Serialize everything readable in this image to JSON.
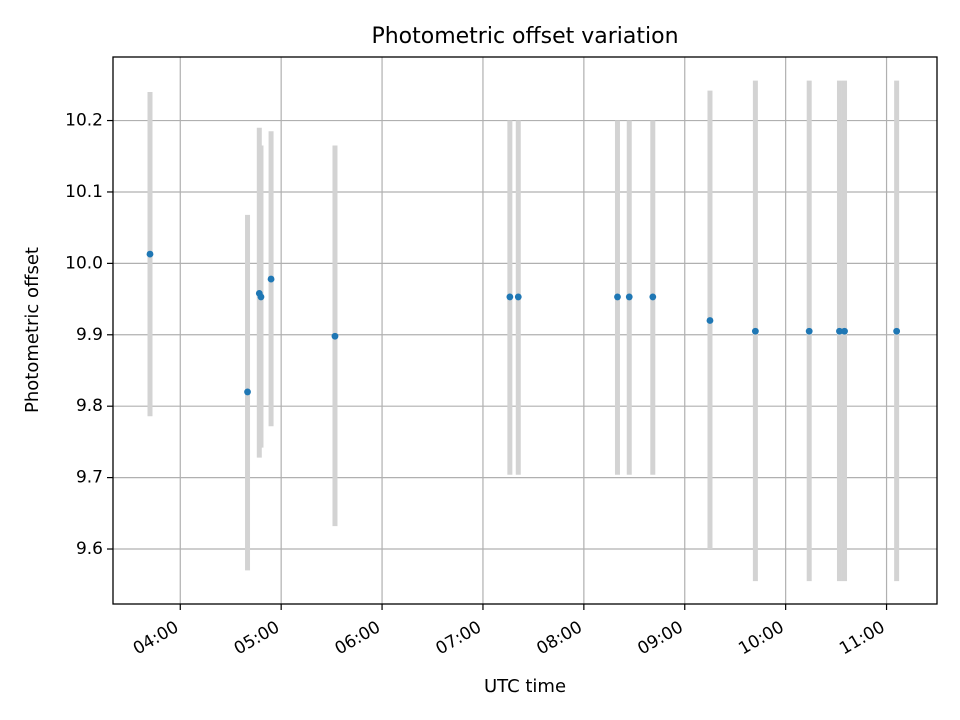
{
  "chart_data": {
    "type": "scatter",
    "title": "Photometric offset variation",
    "xlabel": "UTC time",
    "ylabel": "Photometric offset",
    "xlim": [
      "03:20",
      "11:30"
    ],
    "ylim": [
      9.523,
      10.289
    ],
    "x_ticks": [
      "04:00",
      "05:00",
      "06:00",
      "07:00",
      "08:00",
      "09:00",
      "10:00",
      "11:00"
    ],
    "y_ticks": [
      9.6,
      9.7,
      9.8,
      9.9,
      10.0,
      10.1,
      10.2
    ],
    "grid": true,
    "legend": false,
    "errorbar_color": "#d3d3d3",
    "marker_color": "#1f77b4",
    "points": [
      {
        "time": "03:42",
        "value": 10.013,
        "err_low": 9.786,
        "err_high": 10.24
      },
      {
        "time": "04:40",
        "value": 9.82,
        "err_low": 9.57,
        "err_high": 10.068
      },
      {
        "time": "04:47",
        "value": 9.958,
        "err_low": 9.728,
        "err_high": 10.19
      },
      {
        "time": "04:48",
        "value": 9.953,
        "err_low": 9.742,
        "err_high": 10.165
      },
      {
        "time": "04:54",
        "value": 9.978,
        "err_low": 9.772,
        "err_high": 10.185
      },
      {
        "time": "05:32",
        "value": 9.898,
        "err_low": 9.632,
        "err_high": 10.165
      },
      {
        "time": "07:16",
        "value": 9.953,
        "err_low": 9.704,
        "err_high": 10.2
      },
      {
        "time": "07:21",
        "value": 9.953,
        "err_low": 9.704,
        "err_high": 10.2
      },
      {
        "time": "08:20",
        "value": 9.953,
        "err_low": 9.704,
        "err_high": 10.2
      },
      {
        "time": "08:27",
        "value": 9.953,
        "err_low": 9.704,
        "err_high": 10.2
      },
      {
        "time": "08:41",
        "value": 9.953,
        "err_low": 9.704,
        "err_high": 10.2
      },
      {
        "time": "09:15",
        "value": 9.92,
        "err_low": 9.6,
        "err_high": 10.242
      },
      {
        "time": "09:42",
        "value": 9.905,
        "err_low": 9.555,
        "err_high": 10.256
      },
      {
        "time": "10:14",
        "value": 9.905,
        "err_low": 9.555,
        "err_high": 10.256
      },
      {
        "time": "10:32",
        "value": 9.905,
        "err_low": 9.555,
        "err_high": 10.256
      },
      {
        "time": "10:35",
        "value": 9.905,
        "err_low": 9.555,
        "err_high": 10.256
      },
      {
        "time": "11:06",
        "value": 9.905,
        "err_low": 9.555,
        "err_high": 10.256
      }
    ]
  }
}
